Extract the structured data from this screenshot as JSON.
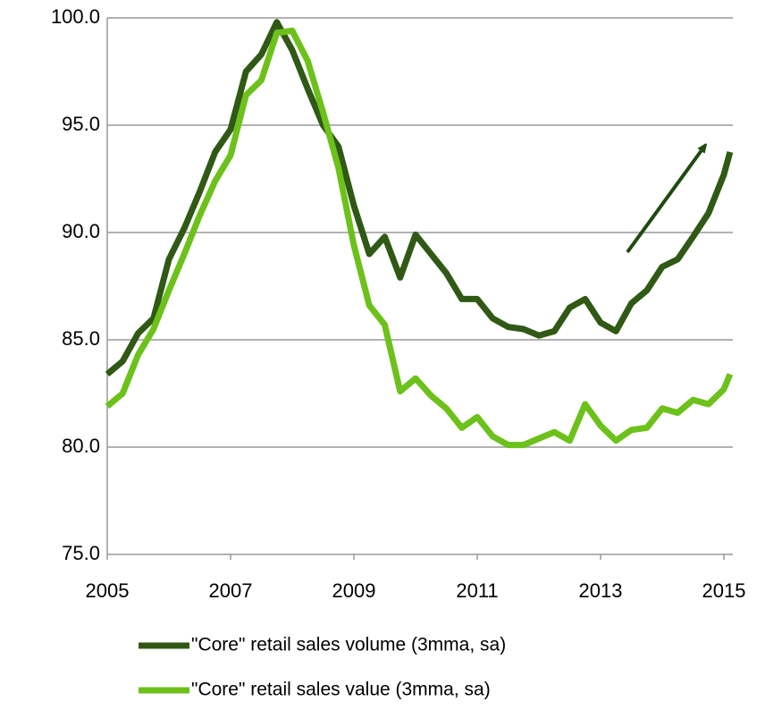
{
  "chart_data": {
    "type": "line",
    "x": [
      2005.0,
      2005.25,
      2005.5,
      2005.75,
      2006.0,
      2006.25,
      2006.5,
      2006.75,
      2007.0,
      2007.25,
      2007.5,
      2007.75,
      2008.0,
      2008.25,
      2008.5,
      2008.75,
      2009.0,
      2009.25,
      2009.5,
      2009.75,
      2010.0,
      2010.25,
      2010.5,
      2010.75,
      2011.0,
      2011.25,
      2011.5,
      2011.75,
      2012.0,
      2012.25,
      2012.5,
      2012.75,
      2013.0,
      2013.25,
      2013.5,
      2013.75,
      2014.0,
      2014.25,
      2014.5,
      2014.75,
      2015.0,
      2015.1
    ],
    "series": [
      {
        "name": "\"Core\" retail sales volume (3mma, sa)",
        "color": "#2f5914",
        "values": [
          83.4,
          84.0,
          85.3,
          86.0,
          88.75,
          90.2,
          91.9,
          93.75,
          94.8,
          97.5,
          98.3,
          99.8,
          98.5,
          96.7,
          95.0,
          94.0,
          91.25,
          89.0,
          89.8,
          87.9,
          89.9,
          89.0,
          88.1,
          86.9,
          86.9,
          86.0,
          85.6,
          85.5,
          85.2,
          85.4,
          86.5,
          86.9,
          85.8,
          85.4,
          86.7,
          87.3,
          88.4,
          88.75,
          89.8,
          90.9,
          92.7,
          93.75
        ]
      },
      {
        "name": "\"Core\" retail sales value (3mma, sa)",
        "color": "#6cc11a",
        "values": [
          81.9,
          82.5,
          84.3,
          85.5,
          87.3,
          89.0,
          90.8,
          92.4,
          93.6,
          96.4,
          97.1,
          99.3,
          99.4,
          98.0,
          95.6,
          93.0,
          89.4,
          86.6,
          85.7,
          82.6,
          83.2,
          82.4,
          81.8,
          80.9,
          81.4,
          80.5,
          80.1,
          80.1,
          80.4,
          80.7,
          80.3,
          82.0,
          81.0,
          80.3,
          80.8,
          80.9,
          81.8,
          81.6,
          82.2,
          82.0,
          82.7,
          83.4
        ]
      }
    ],
    "xlim": [
      2005,
      2015
    ],
    "xticks": [
      2005,
      2007,
      2009,
      2011,
      2013,
      2015
    ],
    "ylim": [
      75,
      100
    ],
    "yticks": [
      {
        "value": 75,
        "label": "75.0"
      },
      {
        "value": 80,
        "label": "80.0"
      },
      {
        "value": 85,
        "label": "85.0"
      },
      {
        "value": 90,
        "label": "90.0"
      },
      {
        "value": 95,
        "label": "95.0"
      },
      {
        "value": 100,
        "label": "100.0"
      }
    ],
    "grid": true,
    "legend": "bottom"
  }
}
